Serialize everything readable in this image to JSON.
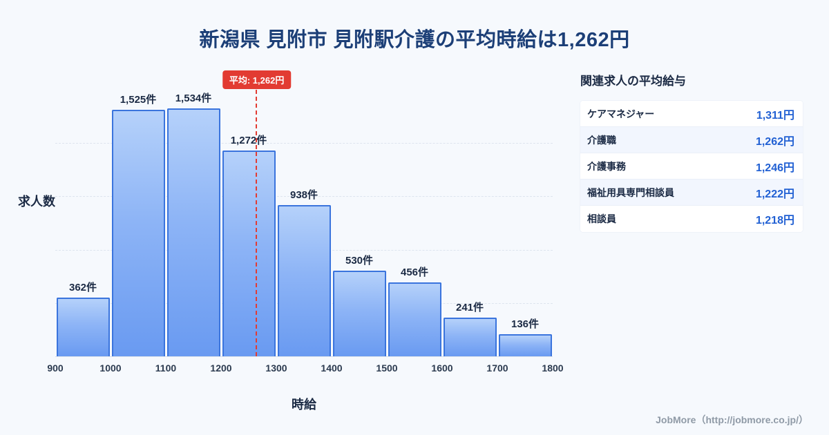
{
  "title": "新潟県 見附市 見附駅介護の平均時給は1,262円",
  "chart_data": {
    "type": "bar",
    "categories": [
      "900",
      "1000",
      "1100",
      "1200",
      "1300",
      "1400",
      "1500",
      "1600",
      "1700",
      "1800"
    ],
    "values": [
      362,
      1525,
      1534,
      1272,
      938,
      530,
      456,
      241,
      136
    ],
    "bar_labels": [
      "362件",
      "1,525件",
      "1,534件",
      "1,272件",
      "938件",
      "530件",
      "456件",
      "241件",
      "136件"
    ],
    "title": "",
    "xlabel": "時給",
    "ylabel": "求人数",
    "ylim": [
      0,
      1650
    ],
    "grid": "horizontal-dashed",
    "legend": "none",
    "average": {
      "value": 1262,
      "label": "平均: 1,262円"
    }
  },
  "side_panel": {
    "title": "関連求人の平均給与",
    "rows": [
      {
        "name": "ケアマネジャー",
        "value": "1,311円"
      },
      {
        "name": "介護職",
        "value": "1,262円"
      },
      {
        "name": "介護事務",
        "value": "1,246円"
      },
      {
        "name": "福祉用具専門相談員",
        "value": "1,222円"
      },
      {
        "name": "相談員",
        "value": "1,218円"
      }
    ]
  },
  "footer": {
    "credit": "JobMore（http://jobmore.co.jp/）"
  },
  "colors": {
    "title_text": "#1c3f77",
    "bar_fill_top": "#b5d1fa",
    "bar_fill_bottom": "#699af1",
    "bar_border": "#3a74dd",
    "average_red": "#e23b32",
    "value_blue": "#2160d3",
    "background": "#f6f9fd"
  }
}
